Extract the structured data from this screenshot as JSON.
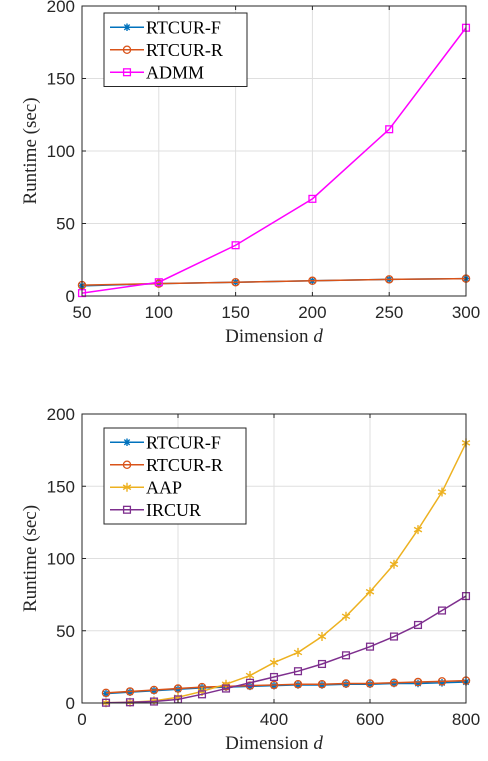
{
  "chart_data": [
    {
      "type": "line",
      "xlabel": "Dimension",
      "xlabel_var": "d",
      "ylabel": "Runtime (sec)",
      "xlim": [
        50,
        300
      ],
      "ylim": [
        0,
        200
      ],
      "x_ticks": [
        50,
        100,
        150,
        200,
        250,
        300
      ],
      "y_ticks": [
        0,
        50,
        100,
        150,
        200
      ],
      "grid": true,
      "legend_position": "top-left",
      "x": [
        50,
        100,
        150,
        200,
        250,
        300
      ],
      "series": [
        {
          "name": "RTCUR-F",
          "color": "#0072BD",
          "marker": "star",
          "values": [
            7,
            8.5,
            9.5,
            10.5,
            11.5,
            12
          ]
        },
        {
          "name": "RTCUR-R",
          "color": "#D95319",
          "marker": "circle",
          "values": [
            7.5,
            8.5,
            9.5,
            10.5,
            11.5,
            12
          ]
        },
        {
          "name": "ADMM",
          "color": "#FF00FF",
          "marker": "square",
          "values": [
            2,
            9.5,
            35,
            67,
            115,
            185
          ]
        }
      ]
    },
    {
      "type": "line",
      "xlabel": "Dimension",
      "xlabel_var": "d",
      "ylabel": "Runtime (sec)",
      "xlim": [
        0,
        800
      ],
      "ylim": [
        0,
        200
      ],
      "x_ticks": [
        0,
        200,
        400,
        600,
        800
      ],
      "y_ticks": [
        0,
        50,
        100,
        150,
        200
      ],
      "grid": true,
      "legend_position": "top-left",
      "x": [
        50,
        100,
        150,
        200,
        250,
        300,
        350,
        400,
        450,
        500,
        550,
        600,
        650,
        700,
        750,
        800
      ],
      "series": [
        {
          "name": "RTCUR-F",
          "color": "#0072BD",
          "marker": "star",
          "values": [
            6.5,
            7.5,
            8.5,
            9.5,
            10.5,
            11,
            11.5,
            12,
            12.5,
            12.5,
            13,
            13,
            13.5,
            13.5,
            14,
            14.5
          ]
        },
        {
          "name": "RTCUR-R",
          "color": "#D95319",
          "marker": "circle",
          "values": [
            7,
            8,
            9,
            10,
            11,
            11.5,
            12,
            12.5,
            13,
            13,
            13.5,
            13.5,
            14,
            14.5,
            15,
            15.5
          ]
        },
        {
          "name": "AAP",
          "color": "#EDB120",
          "marker": "star6",
          "values": [
            0.2,
            0.5,
            1.5,
            4,
            8,
            13,
            19,
            28,
            35,
            46,
            60,
            77,
            96,
            120,
            146,
            180
          ]
        },
        {
          "name": "IRCUR",
          "color": "#7E2F8E",
          "marker": "square",
          "values": [
            0.2,
            0.5,
            1,
            2.5,
            6,
            10,
            14,
            18,
            22,
            27,
            33,
            39,
            46,
            54,
            64,
            74
          ]
        }
      ]
    }
  ]
}
